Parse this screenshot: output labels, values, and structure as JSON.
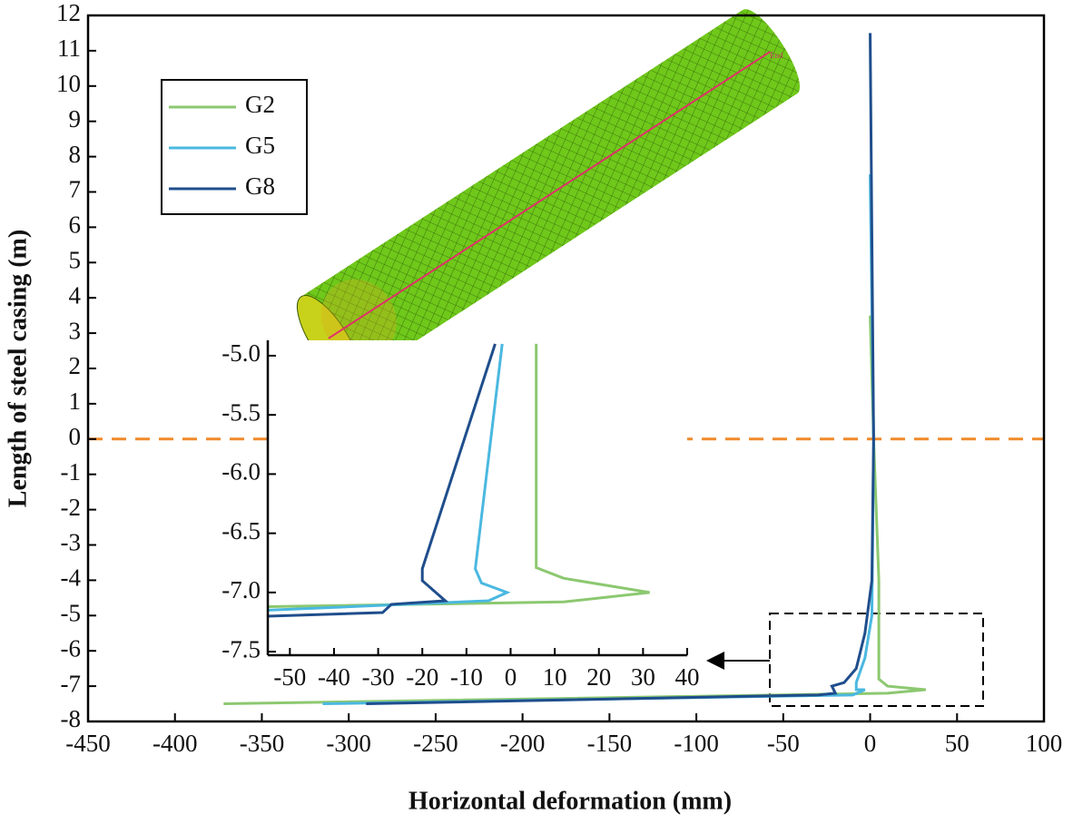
{
  "chart_data": [
    {
      "type": "line",
      "x_label": "Horizontal deformation (mm)",
      "y_label": "Length of steel casing (m)",
      "xlim": [
        -450,
        100
      ],
      "ylim": [
        -8,
        12
      ],
      "xticks": [
        -450,
        -400,
        -350,
        -300,
        -250,
        -200,
        -150,
        -100,
        -50,
        0,
        50,
        100
      ],
      "yticks": [
        -8,
        -7,
        -6,
        -5,
        -4,
        -3,
        -2,
        -1,
        0,
        1,
        2,
        3,
        4,
        5,
        6,
        7,
        8,
        9,
        10,
        11,
        12
      ],
      "hline": 0,
      "hline_color": "#f08a2a",
      "legend": "upper left",
      "annotation": "End",
      "series": [
        {
          "name": "G2",
          "color": "#8cc870",
          "x": [
            0,
            2,
            5,
            5,
            10,
            32,
            10,
            -372
          ],
          "y": [
            3.5,
            0,
            -4,
            -6.8,
            -7.0,
            -7.1,
            -7.2,
            -7.5
          ]
        },
        {
          "name": "G5",
          "color": "#4ab8e0",
          "x": [
            0,
            2,
            1,
            -3,
            -8,
            -8,
            -3,
            -10,
            -315
          ],
          "y": [
            7.5,
            0,
            -5,
            -6.2,
            -6.9,
            -7.1,
            -7.1,
            -7.25,
            -7.5
          ]
        },
        {
          "name": "G8",
          "color": "#1f4e8c",
          "x": [
            0,
            2,
            1,
            -3,
            -8,
            -15,
            -22,
            -20,
            -30,
            -290
          ],
          "y": [
            11.5,
            0,
            -4,
            -5.5,
            -6.5,
            -6.9,
            -7.0,
            -7.2,
            -7.25,
            -7.5
          ]
        }
      ]
    },
    {
      "type": "line",
      "xlim": [
        -55,
        40
      ],
      "ylim": [
        -7.53,
        -4.87
      ],
      "xticks": [
        -50,
        -40,
        -30,
        -20,
        -10,
        0,
        10,
        20,
        30,
        40
      ],
      "yticks": [
        {
          "value": -7.5,
          "label": "-7.5"
        },
        {
          "value": -7,
          "label": "-7.0"
        },
        {
          "value": -6.5,
          "label": "-6.5"
        },
        {
          "value": -6,
          "label": "-6.0"
        },
        {
          "value": -5.5,
          "label": "-5.5"
        },
        {
          "value": -5,
          "label": "-5.0"
        }
      ],
      "series": [
        {
          "color": "#8cc870",
          "x": [
            5.8,
            5.8,
            12,
            31.5,
            12,
            -55
          ],
          "y": [
            -4.9,
            -6.79,
            -6.88,
            -7.0,
            -7.08,
            -7.12
          ]
        },
        {
          "color": "#4ab8e0",
          "x": [
            -1.9,
            -8,
            -6.6,
            -0.8,
            -5,
            -55
          ],
          "y": [
            -4.9,
            -6.8,
            -6.92,
            -7.0,
            -7.07,
            -7.15
          ]
        },
        {
          "color": "#1f4e8c",
          "x": [
            -3.5,
            -20,
            -20,
            -14.8,
            -27,
            -29,
            -55
          ],
          "y": [
            -4.9,
            -6.8,
            -6.9,
            -7.07,
            -7.1,
            -7.17,
            -7.2
          ]
        }
      ]
    }
  ]
}
